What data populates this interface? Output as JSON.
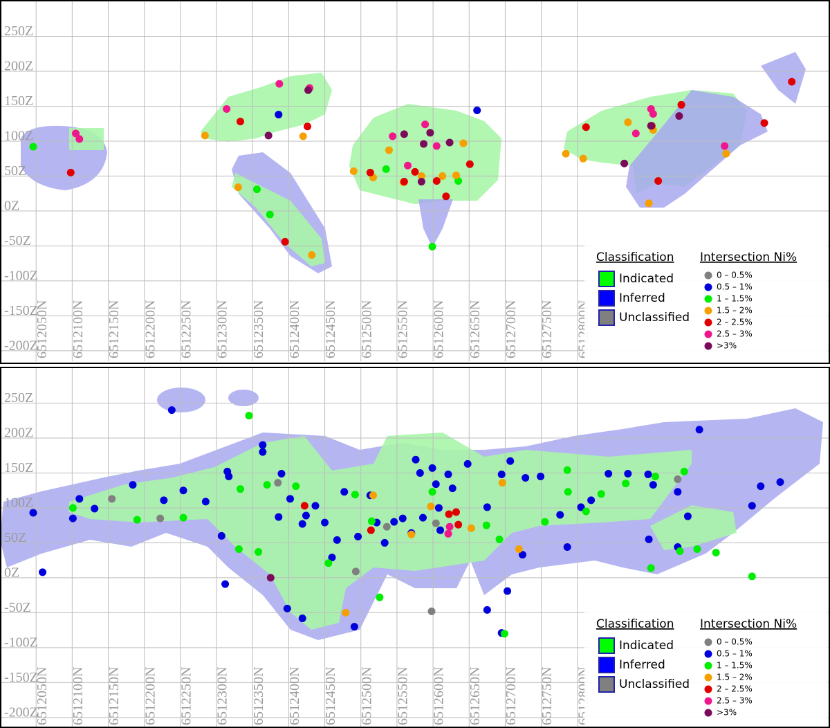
{
  "chart_data": [
    {
      "type": "scatter",
      "xlim": [
        6512000,
        6513150
      ],
      "ylim": [
        -215,
        300
      ],
      "xticks": [
        {
          "value": 6512050,
          "label": "6512050N"
        },
        {
          "value": 6512100,
          "label": "6512100N"
        },
        {
          "value": 6512150,
          "label": "6512150N"
        },
        {
          "value": 6512200,
          "label": "6512200N"
        },
        {
          "value": 6512250,
          "label": "6512250N"
        },
        {
          "value": 6512300,
          "label": "6512300N"
        },
        {
          "value": 6512350,
          "label": "6512350N"
        },
        {
          "value": 6512400,
          "label": "6512400N"
        },
        {
          "value": 6512450,
          "label": "6512450N"
        },
        {
          "value": 6512500,
          "label": "6512500N"
        },
        {
          "value": 6512550,
          "label": "6512550N"
        },
        {
          "value": 6512600,
          "label": "6512600N"
        },
        {
          "value": 6512650,
          "label": "6512650N"
        },
        {
          "value": 6512700,
          "label": "6512700N"
        },
        {
          "value": 6512750,
          "label": "6512750N"
        },
        {
          "value": 6512800,
          "label": "6512800N"
        }
      ],
      "yticks": [
        {
          "value": -200,
          "label": "-200Z"
        },
        {
          "value": -150,
          "label": "-150Z"
        },
        {
          "value": -100,
          "label": "-100Z"
        },
        {
          "value": -50,
          "label": "-50Z"
        },
        {
          "value": 0,
          "label": "0Z"
        },
        {
          "value": 50,
          "label": "50Z"
        },
        {
          "value": 100,
          "label": "100Z"
        },
        {
          "value": 150,
          "label": "150Z"
        },
        {
          "value": 200,
          "label": "200Z"
        },
        {
          "value": 250,
          "label": "250Z"
        }
      ],
      "grid": true,
      "classification": {
        "title": "Classification",
        "classes": [
          {
            "name": "Indicated",
            "color": "#00ff00"
          },
          {
            "name": "Inferred",
            "color": "#0000ff"
          },
          {
            "name": "Unclassified",
            "color": "#808080"
          }
        ]
      },
      "legend_title": "Intersection Ni%",
      "series": [
        {
          "name": "0 – 0.5%",
          "color": "#808080",
          "x": [],
          "y": []
        },
        {
          "name": "0.5 – 1%",
          "color": "#0000dd",
          "x": [
            6512661,
            6512386
          ],
          "y": [
            144,
            138
          ]
        },
        {
          "name": "1 – 1.5%",
          "color": "#00ee00",
          "x": [
            6512046,
            6512356,
            6512374,
            6512599,
            6512535,
            6512635
          ],
          "y": [
            92,
            31,
            -5,
            -51,
            60,
            43
          ]
        },
        {
          "name": "1.5 – 2%",
          "color": "#f5a000",
          "x": [
            6512284,
            6512330,
            6512420,
            6512432,
            6512490,
            6512517,
            6512539,
            6512559,
            6512584,
            6512613,
            6512632,
            6512642,
            6512784,
            6512808,
            6512870,
            6512905,
            6512899,
            6513006
          ],
          "y": [
            108,
            34,
            107,
            -63,
            57,
            48,
            87,
            41,
            50,
            50,
            51,
            97,
            82,
            75,
            127,
            116,
            11,
            82
          ]
        },
        {
          "name": "2 – 2.5%",
          "color": "#e00000",
          "x": [
            6512098,
            6512333,
            6512426,
            6512395,
            6512513,
            6512560,
            6512605,
            6512618,
            6512651,
            6512575,
            6512812,
            6512903,
            6512944,
            6512912,
            6513059,
            6513097
          ],
          "y": [
            55,
            128,
            121,
            -44,
            55,
            42,
            43,
            21,
            67,
            56,
            120,
            122,
            152,
            43,
            126,
            185
          ]
        },
        {
          "name": "2.5 – 3%",
          "color": "#f0168c",
          "x": [
            6512105,
            6512110,
            6512314,
            6512387,
            6512429,
            6512544,
            6512565,
            6512589,
            6512605,
            6512881,
            6512902,
            6512905,
            6513004
          ],
          "y": [
            111,
            103,
            146,
            182,
            176,
            107,
            65,
            124,
            93,
            111,
            146,
            139,
            93
          ]
        },
        {
          "name": ">3%",
          "color": "#7a0a5a",
          "x": [
            6512372,
            6512427,
            6512560,
            6512596,
            6512623,
            6512587,
            6512865,
            6512902,
            6512941,
            6512584
          ],
          "y": [
            108,
            173,
            110,
            112,
            98,
            96,
            68,
            122,
            136,
            42
          ]
        }
      ]
    },
    {
      "type": "scatter",
      "xlim": [
        6512000,
        6513150
      ],
      "ylim": [
        -215,
        300
      ],
      "xticks": [
        {
          "value": 6512050,
          "label": "6512050N"
        },
        {
          "value": 6512100,
          "label": "6512100N"
        },
        {
          "value": 6512150,
          "label": "6512150N"
        },
        {
          "value": 6512200,
          "label": "6512200N"
        },
        {
          "value": 6512250,
          "label": "6512250N"
        },
        {
          "value": 6512300,
          "label": "6512300N"
        },
        {
          "value": 6512350,
          "label": "6512350N"
        },
        {
          "value": 6512400,
          "label": "6512400N"
        },
        {
          "value": 6512450,
          "label": "6512450N"
        },
        {
          "value": 6512500,
          "label": "6512500N"
        },
        {
          "value": 6512550,
          "label": "6512550N"
        },
        {
          "value": 6512600,
          "label": "6512600N"
        },
        {
          "value": 6512650,
          "label": "6512650N"
        },
        {
          "value": 6512700,
          "label": "6512700N"
        },
        {
          "value": 6512750,
          "label": "6512750N"
        },
        {
          "value": 6512800,
          "label": "6512800N"
        }
      ],
      "yticks": [
        {
          "value": -200,
          "label": "-200Z"
        },
        {
          "value": -150,
          "label": "-150Z"
        },
        {
          "value": -100,
          "label": "-100Z"
        },
        {
          "value": -50,
          "label": "-50Z"
        },
        {
          "value": 0,
          "label": "0Z"
        },
        {
          "value": 50,
          "label": "50Z"
        },
        {
          "value": 100,
          "label": "100Z"
        },
        {
          "value": 150,
          "label": "150Z"
        },
        {
          "value": 200,
          "label": "200Z"
        },
        {
          "value": 250,
          "label": "250Z"
        }
      ],
      "grid": true,
      "classification": {
        "title": "Classification",
        "classes": [
          {
            "name": "Indicated",
            "color": "#00ff00"
          },
          {
            "name": "Inferred",
            "color": "#0000ff"
          },
          {
            "name": "Unclassified",
            "color": "#808080"
          }
        ]
      },
      "legend_title": "Intersection Ni%",
      "series": [
        {
          "name": "0 – 0.5%",
          "color": "#808080",
          "x": [
            6512155,
            6512222,
            6512385,
            6512493,
            6512598,
            6512536,
            6512604,
            6512939
          ],
          "y": [
            113,
            85,
            136,
            9,
            -48,
            73,
            78,
            141
          ]
        },
        {
          "name": "0.5 – 1%",
          "color": "#0000dd",
          "x": [
            6512046,
            6512059,
            6512101,
            6512110,
            6512131,
            6512184,
            6512227,
            6512238,
            6512254,
            6512285,
            6512307,
            6512312,
            6512315,
            6512317,
            6512364,
            6512364,
            6512386,
            6512390,
            6512402,
            6512419,
            6512424,
            6512437,
            6512450,
            6512460,
            6512467,
            6512477,
            6512496,
            6512513,
            6512522,
            6512533,
            6512546,
            6512558,
            6512570,
            6512576,
            6512582,
            6512586,
            6512599,
            6512604,
            6512608,
            6512610,
            6512621,
            6512627,
            6512648,
            6512675,
            6512695,
            6512703,
            6512724,
            6512707,
            6512728,
            6512749,
            6512776,
            6512805,
            6512819,
            6512843,
            6512870,
            6512898,
            6512899,
            6512905,
            6512939,
            6512969,
            6513042,
            6513081,
            6513054,
            6512939,
            6512953,
            6512786,
            6512675,
            6512695,
            6512419,
            6512398,
            6512491
          ],
          "y": [
            93,
            8,
            85,
            113,
            99,
            133,
            111,
            240,
            125,
            109,
            60,
            -9,
            152,
            145,
            180,
            190,
            87,
            149,
            113,
            77,
            89,
            103,
            79,
            29,
            54,
            123,
            59,
            118,
            79,
            50,
            80,
            85,
            64,
            169,
            150,
            86,
            157,
            134,
            100,
            68,
            148,
            128,
            163,
            101,
            148,
            -19,
            33,
            167,
            143,
            145,
            90,
            101,
            111,
            149,
            149,
            148,
            55,
            133,
            123,
            212,
            103,
            137,
            131,
            44,
            88,
            44,
            -46,
            -79,
            -58,
            -44,
            -70
          ]
        },
        {
          "name": "1 – 1.5%",
          "color": "#00ee00",
          "x": [
            6512101,
            6512190,
            6512254,
            6512331,
            6512358,
            6512345,
            6512333,
            6512370,
            6512410,
            6512455,
            6512492,
            6512526,
            6512515,
            6512599,
            6512674,
            6512692,
            6512699,
            6512755,
            6512786,
            6512787,
            6512812,
            6512833,
            6512867,
            6512902,
            6512942,
            6512966,
            6512992,
            6513042,
            6512948,
            6512908
          ],
          "y": [
            100,
            83,
            86,
            41,
            37,
            232,
            127,
            133,
            131,
            21,
            119,
            -28,
            81,
            123,
            75,
            55,
            -80,
            80,
            154,
            123,
            95,
            120,
            135,
            14,
            38,
            41,
            36,
            2,
            152,
            145
          ]
        },
        {
          "name": "1.5 – 2%",
          "color": "#f5a000",
          "x": [
            6512479,
            6512517,
            6512570,
            6512597,
            6512653,
            6512696,
            6512719
          ],
          "y": [
            -50,
            118,
            62,
            102,
            71,
            136,
            41
          ]
        },
        {
          "name": "2 – 2.5%",
          "color": "#e00000",
          "x": [
            6512422,
            6512632,
            6512635,
            6512622,
            6512514
          ],
          "y": [
            103,
            94,
            76,
            91,
            68
          ]
        },
        {
          "name": "2.5 – 3%",
          "color": "#f0168c",
          "x": [
            6512621,
            6512623
          ],
          "y": [
            63,
            73
          ]
        },
        {
          "name": ">3%",
          "color": "#7a0a5a",
          "x": [
            6512375
          ],
          "y": [
            0
          ]
        }
      ]
    }
  ]
}
